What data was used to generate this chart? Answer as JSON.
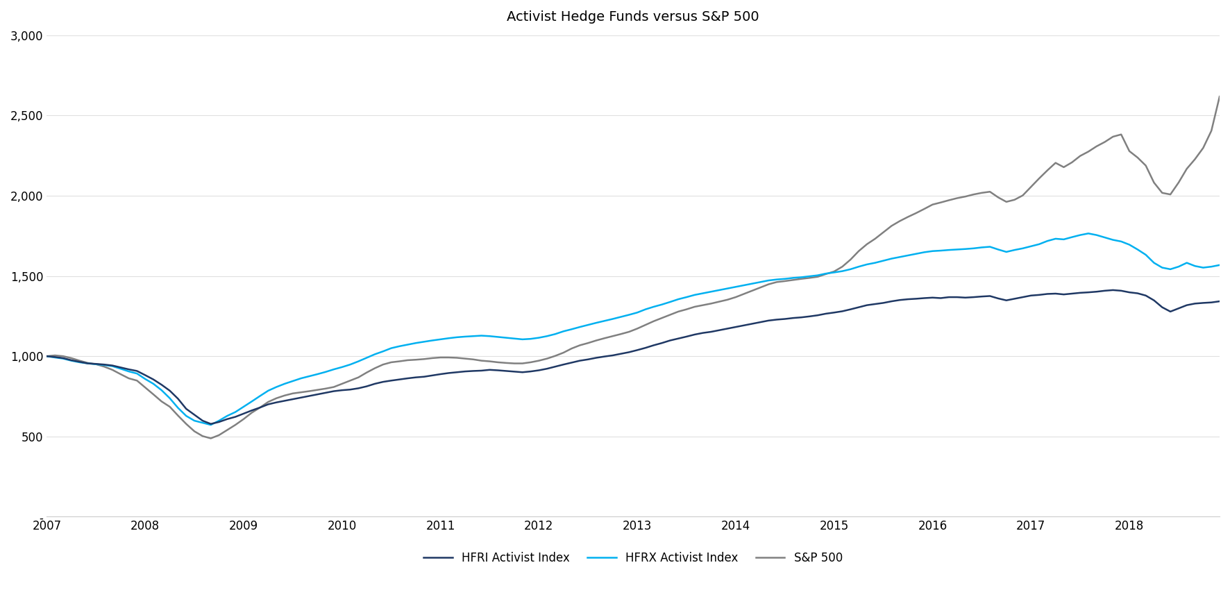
{
  "title": "Activist Hedge Funds versus S&P 500",
  "title_fontsize": 14,
  "background_color": "#ffffff",
  "line_colors": {
    "hfri": "#1f3864",
    "hfrx": "#00b0f0",
    "sp500": "#808080"
  },
  "line_widths": {
    "hfri": 1.8,
    "hfrx": 1.8,
    "sp500": 1.8
  },
  "legend_labels": [
    "HFRI Activist Index",
    "HFRX Activist Index",
    "S&P 500"
  ],
  "ylim": [
    0,
    3000
  ],
  "yticks": [
    0,
    500,
    1000,
    1500,
    2000,
    2500,
    3000
  ],
  "ytick_labels": [
    "-",
    "500",
    "1,000",
    "1,500",
    "2,000",
    "2,500",
    "3,000"
  ],
  "xticks": [
    2007,
    2008,
    2009,
    2010,
    2011,
    2012,
    2013,
    2014,
    2015,
    2016,
    2017,
    2018
  ],
  "hfri": [
    1000,
    995,
    988,
    975,
    965,
    955,
    952,
    948,
    942,
    930,
    918,
    908,
    882,
    855,
    822,
    785,
    735,
    672,
    635,
    598,
    578,
    590,
    608,
    622,
    642,
    662,
    680,
    700,
    712,
    722,
    732,
    742,
    752,
    762,
    772,
    782,
    788,
    792,
    800,
    812,
    828,
    840,
    848,
    855,
    862,
    868,
    872,
    880,
    888,
    895,
    900,
    905,
    908,
    910,
    915,
    912,
    908,
    904,
    900,
    905,
    912,
    922,
    935,
    948,
    960,
    972,
    980,
    990,
    998,
    1005,
    1015,
    1025,
    1038,
    1052,
    1068,
    1082,
    1098,
    1110,
    1122,
    1135,
    1145,
    1152,
    1162,
    1172,
    1182,
    1192,
    1202,
    1212,
    1222,
    1228,
    1232,
    1238,
    1242,
    1248,
    1255,
    1265,
    1272,
    1280,
    1292,
    1305,
    1318,
    1325,
    1332,
    1342,
    1350,
    1355,
    1358,
    1362,
    1365,
    1362,
    1368,
    1368,
    1365,
    1368,
    1372,
    1375,
    1360,
    1348,
    1358,
    1368,
    1378,
    1382,
    1388,
    1390,
    1385,
    1390,
    1395,
    1398,
    1402,
    1408,
    1412,
    1408,
    1398,
    1392,
    1378,
    1348,
    1305,
    1278,
    1298,
    1318,
    1328,
    1332,
    1335,
    1342
  ],
  "hfrx": [
    1000,
    992,
    985,
    972,
    962,
    955,
    950,
    945,
    938,
    922,
    905,
    892,
    858,
    828,
    788,
    738,
    678,
    628,
    598,
    585,
    572,
    598,
    628,
    652,
    685,
    718,
    752,
    785,
    808,
    828,
    845,
    862,
    875,
    888,
    902,
    918,
    932,
    948,
    968,
    990,
    1012,
    1030,
    1050,
    1062,
    1072,
    1082,
    1090,
    1098,
    1105,
    1112,
    1118,
    1122,
    1125,
    1128,
    1125,
    1120,
    1115,
    1110,
    1105,
    1108,
    1115,
    1125,
    1138,
    1155,
    1168,
    1182,
    1195,
    1208,
    1220,
    1232,
    1245,
    1258,
    1272,
    1292,
    1308,
    1322,
    1338,
    1355,
    1368,
    1382,
    1392,
    1402,
    1412,
    1422,
    1432,
    1442,
    1452,
    1462,
    1472,
    1478,
    1482,
    1488,
    1492,
    1498,
    1504,
    1515,
    1522,
    1530,
    1542,
    1558,
    1572,
    1582,
    1595,
    1608,
    1618,
    1628,
    1638,
    1648,
    1655,
    1658,
    1662,
    1665,
    1668,
    1672,
    1678,
    1682,
    1665,
    1650,
    1662,
    1672,
    1685,
    1698,
    1718,
    1732,
    1728,
    1742,
    1755,
    1765,
    1755,
    1740,
    1725,
    1715,
    1695,
    1665,
    1632,
    1582,
    1552,
    1542,
    1558,
    1582,
    1562,
    1552,
    1558,
    1568
  ],
  "sp500": [
    1000,
    1005,
    1000,
    988,
    972,
    958,
    950,
    935,
    915,
    888,
    862,
    848,
    805,
    762,
    718,
    685,
    630,
    578,
    532,
    502,
    488,
    508,
    540,
    572,
    608,
    648,
    680,
    715,
    738,
    755,
    768,
    775,
    782,
    790,
    798,
    808,
    828,
    848,
    868,
    898,
    925,
    948,
    962,
    968,
    975,
    978,
    982,
    988,
    992,
    992,
    990,
    985,
    980,
    972,
    968,
    962,
    958,
    955,
    955,
    962,
    972,
    985,
    1002,
    1022,
    1048,
    1068,
    1082,
    1098,
    1112,
    1125,
    1138,
    1152,
    1172,
    1195,
    1218,
    1238,
    1258,
    1278,
    1292,
    1308,
    1318,
    1328,
    1340,
    1352,
    1368,
    1388,
    1408,
    1428,
    1448,
    1462,
    1468,
    1475,
    1482,
    1488,
    1495,
    1512,
    1528,
    1558,
    1602,
    1655,
    1698,
    1732,
    1772,
    1812,
    1842,
    1868,
    1892,
    1918,
    1945,
    1958,
    1972,
    1985,
    1995,
    2008,
    2018,
    2025,
    1990,
    1962,
    1975,
    2002,
    2055,
    2108,
    2158,
    2205,
    2178,
    2208,
    2248,
    2275,
    2308,
    2335,
    2368,
    2382,
    2278,
    2238,
    2188,
    2082,
    2018,
    2008,
    2082,
    2168,
    2228,
    2298,
    2405,
    2618
  ]
}
